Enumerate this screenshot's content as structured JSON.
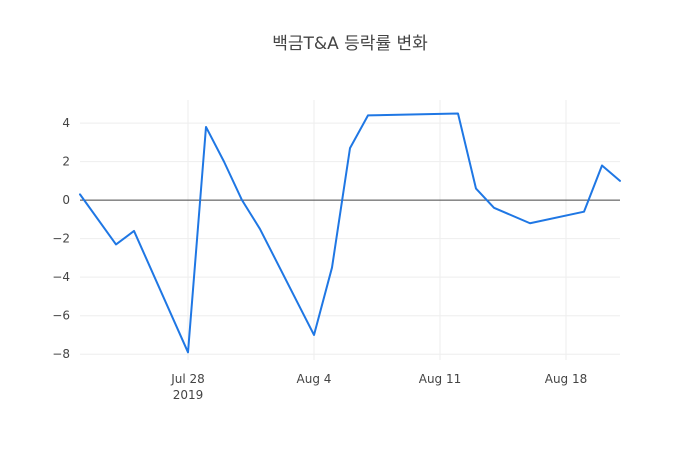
{
  "chart_data": {
    "type": "line",
    "title": "백금T&A 등락률 변화",
    "xlabel": "",
    "ylabel": "",
    "x_range": [
      "2019-07-22",
      "2019-08-21"
    ],
    "ylim": [
      -8.3,
      5.2
    ],
    "y_ticks": [
      4,
      2,
      0,
      -2,
      -4,
      -6,
      -8
    ],
    "y_tick_labels": [
      "4",
      "2",
      "0",
      "−2",
      "−4",
      "−6",
      "−8"
    ],
    "x_ticks": [
      {
        "date": "2019-07-28",
        "label": "Jul 28",
        "sublabel": "2019"
      },
      {
        "date": "2019-08-04",
        "label": "Aug 4",
        "sublabel": ""
      },
      {
        "date": "2019-08-11",
        "label": "Aug 11",
        "sublabel": ""
      },
      {
        "date": "2019-08-18",
        "label": "Aug 18",
        "sublabel": ""
      }
    ],
    "grid": true,
    "zero_line": true,
    "line_color": "#1f77e4",
    "series": [
      {
        "name": "",
        "x": [
          "2019-07-22",
          "2019-07-24",
          "2019-07-25",
          "2019-07-28",
          "2019-07-29",
          "2019-07-30",
          "2019-07-31",
          "2019-08-01",
          "2019-08-04",
          "2019-08-05",
          "2019-08-06",
          "2019-08-07",
          "2019-08-12",
          "2019-08-13",
          "2019-08-14",
          "2019-08-16",
          "2019-08-19",
          "2019-08-20",
          "2019-08-21"
        ],
        "y": [
          0.3,
          -2.3,
          -1.6,
          -7.9,
          3.8,
          2.0,
          0.0,
          -1.5,
          -7.0,
          -3.5,
          2.7,
          4.4,
          4.5,
          0.6,
          -0.4,
          -1.2,
          -0.6,
          1.8,
          1.0
        ]
      }
    ]
  }
}
